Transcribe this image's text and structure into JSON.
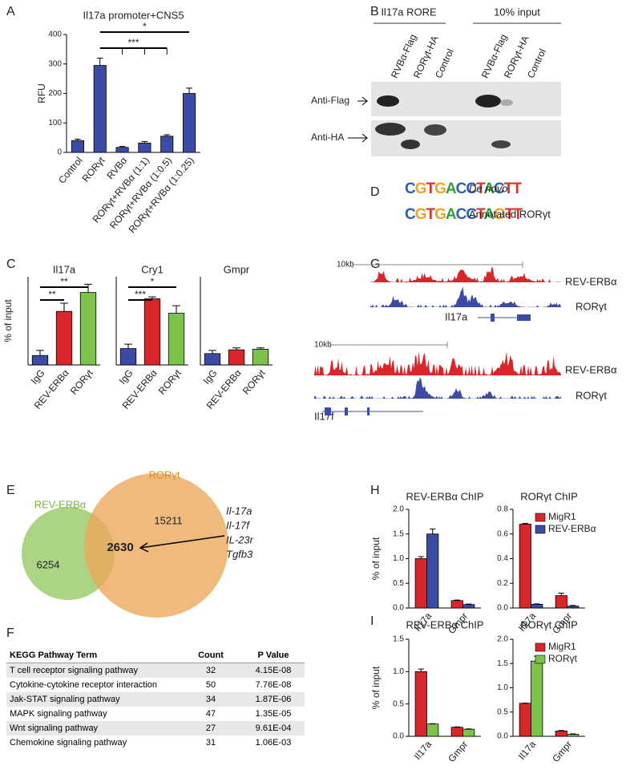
{
  "panel_labels": [
    "A",
    "B",
    "C",
    "D",
    "E",
    "F",
    "G",
    "H",
    "I"
  ],
  "chart_data": [
    {
      "type": "bar",
      "title": "Il17a promoter+CNS5",
      "y_label": "RFU",
      "categories": [
        "Control",
        "RORγt",
        "RVBα",
        "RORγt+RVBα (1:1)",
        "RORγt+RVBα (1:0.5)",
        "RORγt+RVBα (1:0.25)"
      ],
      "values": [
        40,
        295,
        17,
        32,
        55,
        200
      ],
      "errors": [
        5,
        25,
        3,
        5,
        5,
        18
      ],
      "color": "#3b4ba6",
      "ylim": [
        0,
        400
      ],
      "yticks": [
        0,
        100,
        200,
        300,
        400
      ],
      "annotations": [
        "*",
        "***"
      ]
    },
    {
      "type": "bar",
      "title": "Il17a",
      "y_label": "% of input",
      "categories": [
        "IgG",
        "REV-ERBα",
        "RORγt"
      ],
      "values": [
        0.15,
        0.85,
        1.15
      ],
      "errors": [
        0.08,
        0.13,
        0.13
      ],
      "colors": [
        "#3b4ba6",
        "#d9262b",
        "#7dc24b"
      ],
      "ylim": [
        0,
        1.4
      ],
      "annotations": [
        "**",
        "**"
      ]
    },
    {
      "type": "bar",
      "title": "Cry1",
      "categories": [
        "IgG",
        "REV-ERBα",
        "RORγt"
      ],
      "values": [
        0.26,
        1.05,
        0.82
      ],
      "errors": [
        0.07,
        0.03,
        0.12
      ],
      "colors": [
        "#3b4ba6",
        "#d9262b",
        "#7dc24b"
      ],
      "ylim": [
        0,
        1.4
      ],
      "annotations": [
        "***",
        "*"
      ]
    },
    {
      "type": "bar",
      "title": "Gmpr",
      "categories": [
        "IgG",
        "REV-ERBα",
        "RORγt"
      ],
      "values": [
        0.18,
        0.24,
        0.25
      ],
      "errors": [
        0.05,
        0.03,
        0.02
      ],
      "colors": [
        "#3b4ba6",
        "#d9262b",
        "#7dc24b"
      ],
      "ylim": [
        0,
        1.4
      ]
    },
    {
      "type": "bar",
      "title": "REV-ERBα ChIP",
      "y_label": "% of input",
      "categories": [
        "Il17a",
        "Gmpr"
      ],
      "series": [
        {
          "name": "MigR1",
          "color": "#d9262b",
          "values": [
            1.0,
            0.15
          ],
          "errors": [
            0.04,
            0.01
          ]
        },
        {
          "name": "REV-ERBα",
          "color": "#3b4ba6",
          "values": [
            1.5,
            0.07
          ],
          "errors": [
            0.1,
            0.01
          ]
        }
      ],
      "ylim": [
        0,
        2
      ],
      "yticks": [
        {
          "value": 0,
          "label": "0.0"
        },
        0.5,
        {
          "value": 1,
          "label": "1.0"
        },
        1.5,
        {
          "value": 2,
          "label": "2.0"
        }
      ]
    },
    {
      "type": "bar",
      "title": "RORγt ChIP",
      "categories": [
        "Il17a",
        "Gmpr"
      ],
      "series": [
        {
          "name": "MigR1",
          "color": "#d9262b",
          "values": [
            0.68,
            0.1
          ],
          "errors": [
            0.005,
            0.02
          ]
        },
        {
          "name": "REV-ERBα",
          "color": "#3b4ba6",
          "values": [
            0.03,
            0.015
          ],
          "errors": [
            0.003,
            0.005
          ]
        }
      ],
      "ylim": [
        0,
        0.8
      ],
      "yticks": [
        {
          "value": 0,
          "label": "0.0"
        },
        0.2,
        0.4,
        0.6,
        0.8
      ],
      "legend": "upper right"
    },
    {
      "type": "bar",
      "title": "REV-ERBα ChIP",
      "y_label": "% of input",
      "categories": [
        "Il17a",
        "Gmpr"
      ],
      "series": [
        {
          "name": "MigR1",
          "color": "#d9262b",
          "values": [
            1.0,
            0.14
          ],
          "errors": [
            0.04,
            0.005
          ]
        },
        {
          "name": "RORγt",
          "color": "#7dc24b",
          "values": [
            0.19,
            0.11
          ],
          "errors": [
            0.005,
            0.005
          ]
        }
      ],
      "ylim": [
        0,
        1.5
      ],
      "yticks": [
        {
          "value": 0,
          "label": "0.0"
        },
        0.5,
        {
          "value": 1,
          "label": "1.0"
        },
        1.5
      ]
    },
    {
      "type": "bar",
      "title": "RORγt ChIP",
      "categories": [
        "Il17a",
        "Gmpr"
      ],
      "series": [
        {
          "name": "MigR1",
          "color": "#d9262b",
          "values": [
            0.68,
            0.11
          ],
          "errors": [
            0.003,
            0.01
          ]
        },
        {
          "name": "RORγt",
          "color": "#7dc24b",
          "values": [
            1.55,
            0.04
          ],
          "errors": [
            0.1,
            0.01
          ]
        }
      ],
      "ylim": [
        0,
        2
      ],
      "yticks": [
        {
          "value": 0,
          "label": "0.0"
        },
        0.5,
        {
          "value": 1,
          "label": "1.0"
        },
        1.5,
        {
          "value": 2,
          "label": "2.0"
        }
      ],
      "legend": "upper right"
    }
  ],
  "blot": {
    "headers": [
      "Il17a RORE",
      "10% input"
    ],
    "lanes": [
      "RVBα-Flag",
      "RORγt-HA",
      "Control",
      "RVBα-Flag",
      "RORγt-HA",
      "Control"
    ],
    "rows": [
      "Anti-Flag",
      "Anti-HA"
    ]
  },
  "motifs": [
    {
      "sequence": "CGTGACCTACTT",
      "label": "De novo"
    },
    {
      "sequence": "CGTGACCTAGTT",
      "label": "Annotated RORγt"
    }
  ],
  "tracks": [
    {
      "scale": "10kb",
      "tracks": [
        "REV-ERBα",
        "RORγt"
      ],
      "gene": "Il17a"
    },
    {
      "scale": "10kb",
      "tracks": [
        "REV-ERBα",
        "RORγt"
      ],
      "gene": "Il17f"
    }
  ],
  "venn": {
    "sets": [
      "REV-ERBα",
      "RORγt"
    ],
    "only_a": 6254,
    "overlap": 2630,
    "only_b": 15211,
    "genes": [
      "Il-17a",
      "Il-17f",
      "IL-23r",
      "Tgfb3"
    ]
  },
  "table": {
    "headers": [
      "KEGG Pathway Term",
      "Count",
      "P Value"
    ],
    "rows": [
      [
        "T cell receptor signaling pathway",
        32,
        "4.15E-08"
      ],
      [
        "Cytokine-cytokine receptor interaction",
        50,
        "7.76E-08"
      ],
      [
        "Jak-STAT signaling pathway",
        34,
        "1.87E-06"
      ],
      [
        "MAPK signaling pathway",
        47,
        "1.35E-05"
      ],
      [
        "Wnt signaling pathway",
        27,
        "9.61E-04"
      ],
      [
        "Chemokine signaling pathway",
        31,
        "1.06E-03"
      ]
    ]
  }
}
